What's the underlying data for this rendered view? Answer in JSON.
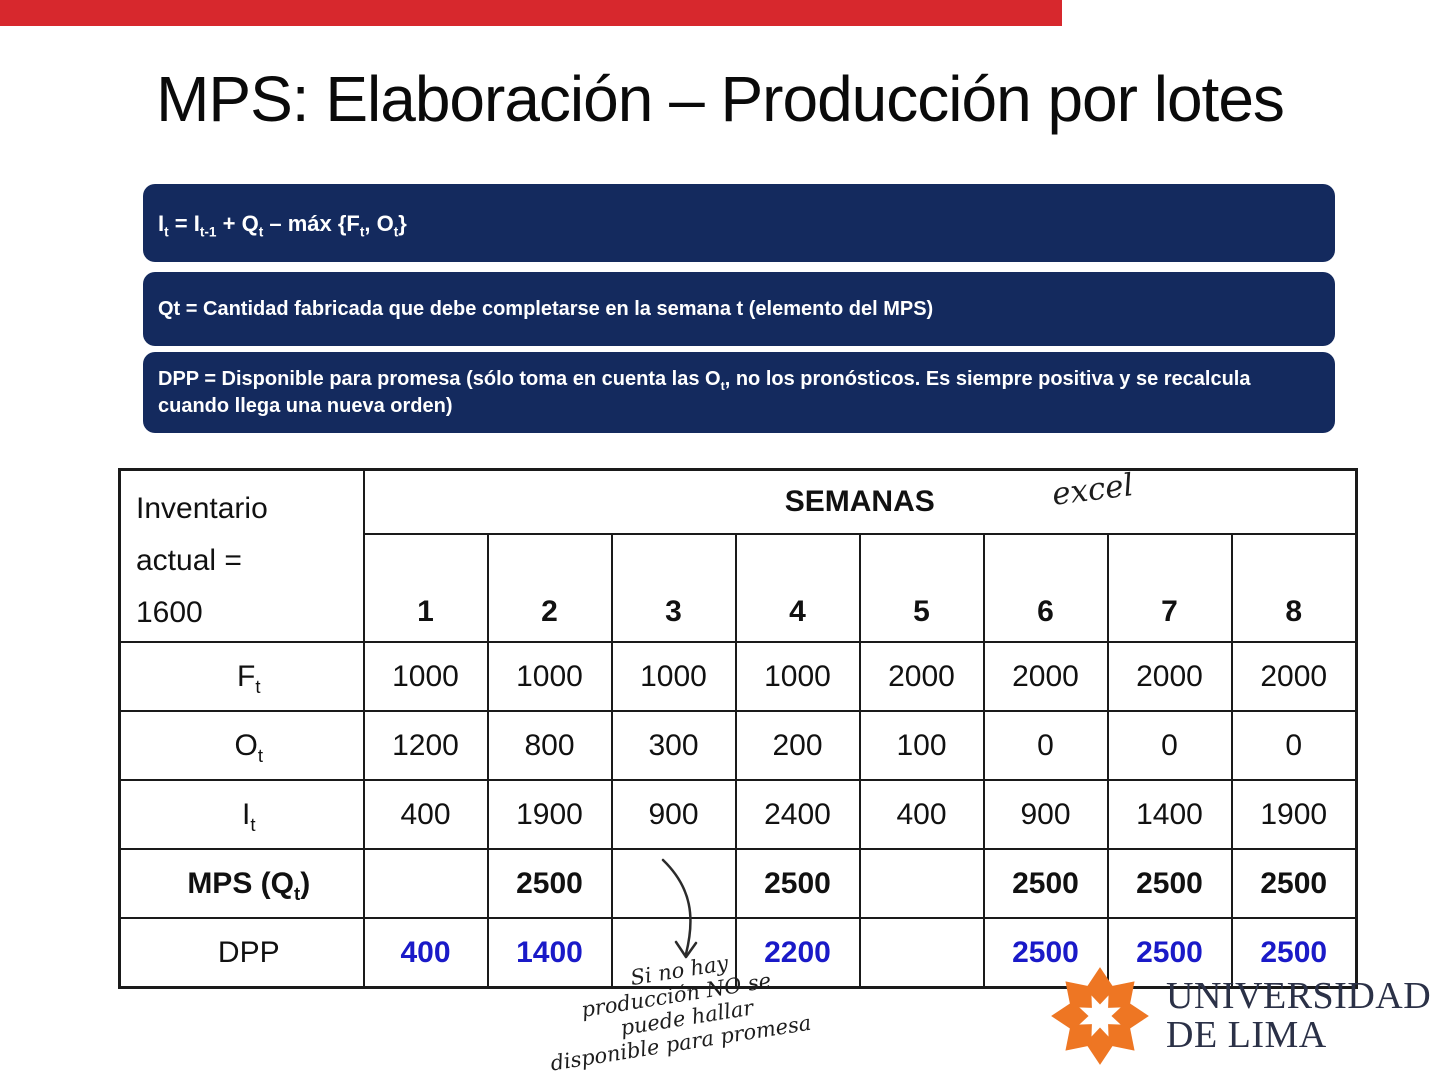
{
  "slide": {
    "title": "MPS: Elaboración – Producción por lotes"
  },
  "colors": {
    "top_bar": "#d7282d",
    "callout_navy": "#142a5e",
    "red_value": "#e11212",
    "blue_value": "#1a1ac8",
    "logo_orange": "#ee7623",
    "logo_text": "#2b3147"
  },
  "boxes": {
    "box1": {
      "runs": [
        {
          "t": "I"
        },
        {
          "t": "t",
          "sub": true
        },
        {
          "t": " = I"
        },
        {
          "t": "t-1",
          "sub": true
        },
        {
          "t": " + Q"
        },
        {
          "t": "t",
          "sub": true
        },
        {
          "t": " – máx {F"
        },
        {
          "t": "t",
          "sub": true
        },
        {
          "t": ", O"
        },
        {
          "t": "t",
          "sub": true
        },
        {
          "t": "}"
        }
      ]
    },
    "box2": {
      "runs": [
        {
          "t": "Qt = Cantidad fabricada que debe completarse en la semana t (elemento del MPS)"
        }
      ]
    },
    "box3": {
      "runs": [
        {
          "t": "DPP = Disponible para promesa (sólo toma en cuenta las O"
        },
        {
          "t": "t",
          "sub": true
        },
        {
          "t": ", no los pronósticos. Es siempre positiva y se recalcula cuando llega una nueva orden)"
        }
      ]
    }
  },
  "table": {
    "corner_lines": [
      "Inventario",
      "actual =",
      "1600"
    ],
    "header": "SEMANAS",
    "weeks": [
      "1",
      "2",
      "3",
      "4",
      "5",
      "6",
      "7",
      "8"
    ],
    "labels": {
      "ft": [
        {
          "t": "F"
        },
        {
          "t": "t",
          "sub": true
        }
      ],
      "ot": [
        {
          "t": "O"
        },
        {
          "t": "t",
          "sub": true
        }
      ],
      "it": [
        {
          "t": "I"
        },
        {
          "t": "t",
          "sub": true
        }
      ],
      "mps": [
        {
          "t": "MPS (Q"
        },
        {
          "t": "t",
          "sub": true
        },
        {
          "t": ")"
        }
      ],
      "dpp": [
        {
          "t": "DPP"
        }
      ]
    },
    "ft": [
      "1000",
      "1000",
      "1000",
      "1000",
      "2000",
      "2000",
      "2000",
      "2000"
    ],
    "ot": [
      "1200",
      "800",
      "300",
      "200",
      "100",
      "0",
      "0",
      "0"
    ],
    "it": [
      "400",
      "1900",
      "900",
      "2400",
      "400",
      "900",
      "1400",
      "1900"
    ],
    "mps": [
      "",
      "2500",
      "",
      "2500",
      "",
      "2500",
      "2500",
      "2500"
    ],
    "dpp": [
      "400",
      "1400",
      "",
      "2200",
      "",
      "2500",
      "2500",
      "2500"
    ]
  },
  "annotations": {
    "excel": "excel",
    "note_lines": [
      "Si no hay",
      "producción NO se",
      "puede hallar",
      "disponible para promesa"
    ]
  },
  "logo": {
    "line1": "UNIVERSIDAD",
    "line2": "DE LIMA"
  }
}
